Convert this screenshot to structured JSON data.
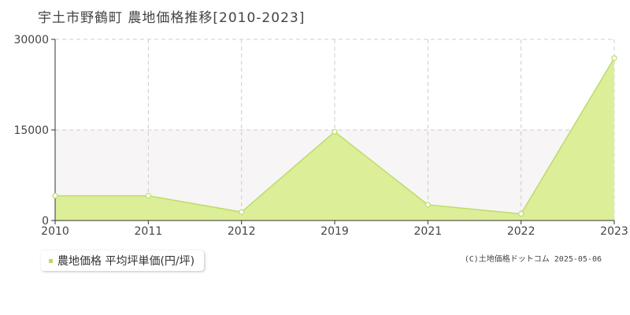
{
  "title": "宇土市野鶴町 農地価格推移[2010-2023]",
  "legend": {
    "label": "農地価格 平均坪単価(円/坪)"
  },
  "copyright": "(C)土地価格ドットコム 2025-05-06",
  "colors": {
    "fill": "#ddee99",
    "line": "#bbdd66",
    "marker_stroke": "#bbdd66",
    "band": "#f7f5f5",
    "grid": "#cccccc"
  },
  "chart_data": {
    "type": "area",
    "title": "宇土市野鶴町 農地価格推移[2010-2023]",
    "categories": [
      "2010",
      "2011",
      "2012",
      "2019",
      "2021",
      "2022",
      "2023"
    ],
    "series": [
      {
        "name": "農地価格 平均坪単価(円/坪)",
        "values": [
          4100,
          4100,
          1400,
          14700,
          2600,
          1100,
          26900
        ]
      }
    ],
    "yticks": [
      0,
      15000,
      30000
    ],
    "ylim": [
      0,
      30000
    ],
    "grid": true,
    "legend_position": "bottom-left"
  }
}
